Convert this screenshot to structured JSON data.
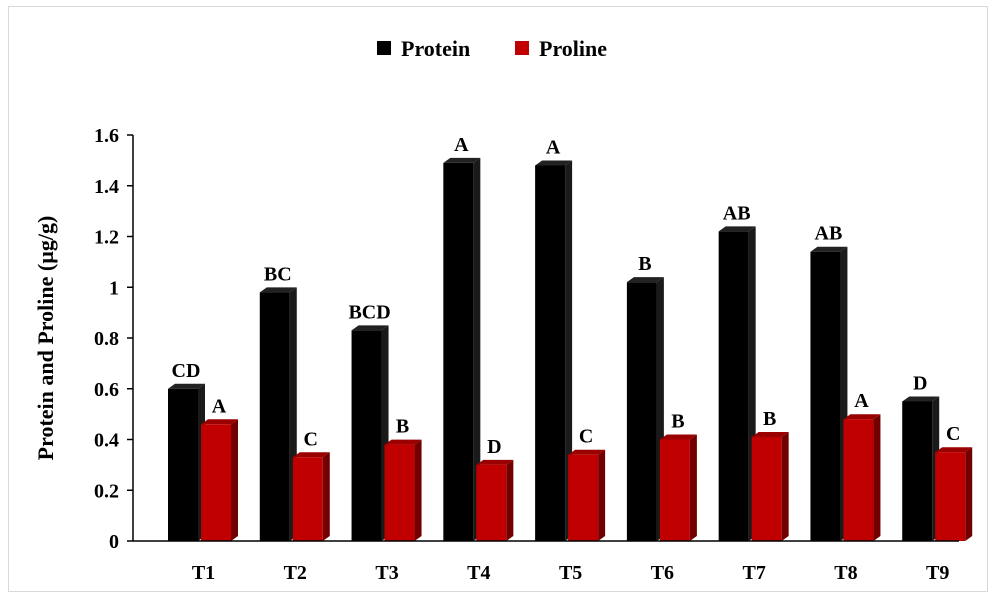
{
  "chart_data": {
    "type": "bar",
    "title": "",
    "xlabel": "",
    "ylabel": "Protein and Proline (µg/g)",
    "ylim": [
      0,
      1.6
    ],
    "yticks": [
      0,
      0.2,
      0.4,
      0.6,
      0.8,
      1,
      1.2,
      1.4,
      1.6
    ],
    "ytick_labels": [
      "0",
      "0.2",
      "0.4",
      "0.6",
      "0.8",
      "1",
      "1.2",
      "1.4",
      "1.6"
    ],
    "categories": [
      "T1",
      "T2",
      "T3",
      "T4",
      "T5",
      "T6",
      "T7",
      "T8",
      "T9"
    ],
    "legend_position": "top-center",
    "grid": false,
    "bar_style": "3d",
    "series": [
      {
        "name": "Protein",
        "color": "#000000",
        "values": [
          0.6,
          0.98,
          0.83,
          1.49,
          1.48,
          1.02,
          1.22,
          1.14,
          0.55
        ],
        "labels": [
          "CD",
          "BC",
          "BCD",
          "A",
          "A",
          "B",
          "AB",
          "AB",
          "D"
        ]
      },
      {
        "name": "Proline",
        "color": "#c00000",
        "values": [
          0.46,
          0.33,
          0.38,
          0.3,
          0.34,
          0.4,
          0.41,
          0.48,
          0.35
        ],
        "labels": [
          "A",
          "C",
          "B",
          "D",
          "C",
          "B",
          "B",
          "A",
          "C"
        ]
      }
    ]
  }
}
